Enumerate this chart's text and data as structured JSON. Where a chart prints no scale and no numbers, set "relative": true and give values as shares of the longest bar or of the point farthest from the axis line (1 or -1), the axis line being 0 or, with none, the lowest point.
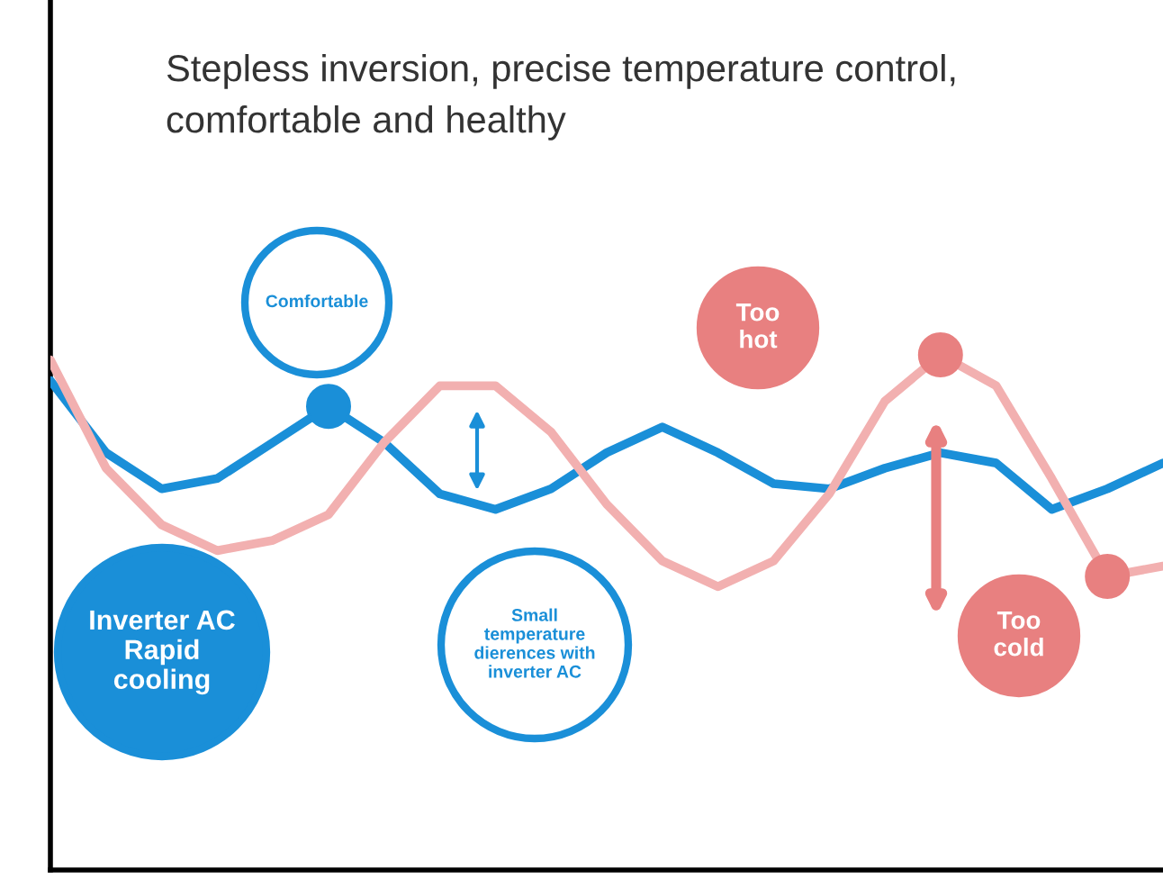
{
  "chart_data": {
    "type": "line",
    "relative": true,
    "title": "Stepless inversion, precise temperature control,\ncomfortable and healthy",
    "categories": [
      null,
      null,
      null,
      null,
      null,
      null,
      null,
      null,
      null,
      null,
      null,
      null,
      null,
      null,
      null,
      null,
      null,
      null,
      null,
      null,
      null
    ],
    "series": [
      {
        "color": "#1a8fd8",
        "values": [
          0.95,
          0.81,
          0.74,
          0.76,
          0.83,
          0.9,
          0.83,
          0.73,
          0.7,
          0.74,
          0.81,
          0.86,
          0.81,
          0.75,
          0.74,
          0.78,
          0.81,
          0.79,
          0.7,
          0.74,
          0.79
        ]
      },
      {
        "color": "#f2b0b0",
        "values": [
          0.99,
          0.78,
          0.67,
          0.62,
          0.64,
          0.69,
          0.83,
          0.94,
          0.94,
          0.85,
          0.71,
          0.6,
          0.55,
          0.6,
          0.73,
          0.91,
          1.0,
          0.94,
          0.76,
          0.57,
          0.59
        ]
      }
    ],
    "annotations": [
      "Comfortable",
      "Too\nhot",
      "Too\ncold",
      "Inverter AC\nRapid\ncooling",
      "Small\ntemperature\ndierences with\ninverter AC"
    ],
    "legend": false
  }
}
